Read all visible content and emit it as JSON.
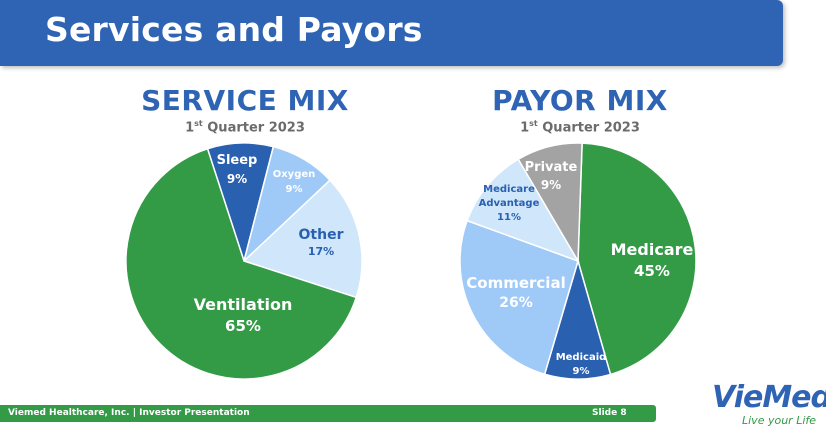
{
  "header": {
    "title": "Services and Payors"
  },
  "colors": {
    "blue": "#2f64b4",
    "green": "#339a46",
    "dark_blue": "#2a60b0",
    "light_blue": "#9fcaf8",
    "pale_blue": "#cfe6fb",
    "gray": "#a3a3a3"
  },
  "chart_data": [
    {
      "type": "pie",
      "title": "SERVICE MIX",
      "subtitle_ordinal": "1",
      "subtitle_sup": "st",
      "subtitle_rest": " Quarter 2023",
      "categories": [
        "Sleep",
        "Oxygen",
        "Other",
        "Ventilation"
      ],
      "values": [
        9,
        9,
        17,
        65
      ],
      "value_labels": [
        "9%",
        "9%",
        "17%",
        "65%"
      ],
      "colors": [
        "#2a60b0",
        "#9fcaf8",
        "#cfe6fb",
        "#339a46"
      ]
    },
    {
      "type": "pie",
      "title": "PAYOR MIX",
      "subtitle_ordinal": "1",
      "subtitle_sup": "st",
      "subtitle_rest": " Quarter 2023",
      "categories": [
        "Medicare",
        "Medicaid",
        "Commercial",
        "Medicare Advantage",
        "Private"
      ],
      "values": [
        45,
        9,
        26,
        11,
        9
      ],
      "value_labels": [
        "45%",
        "9%",
        "26%",
        "11%",
        "9%"
      ],
      "colors": [
        "#339a46",
        "#2a60b0",
        "#9fcaf8",
        "#cfe6fb",
        "#a3a3a3"
      ]
    }
  ],
  "footer": {
    "left": "Viemed Healthcare, Inc. | Investor Presentation",
    "right": "Slide 8"
  },
  "logo": {
    "brand": "VieMed",
    "tagline": "Live your Life"
  }
}
